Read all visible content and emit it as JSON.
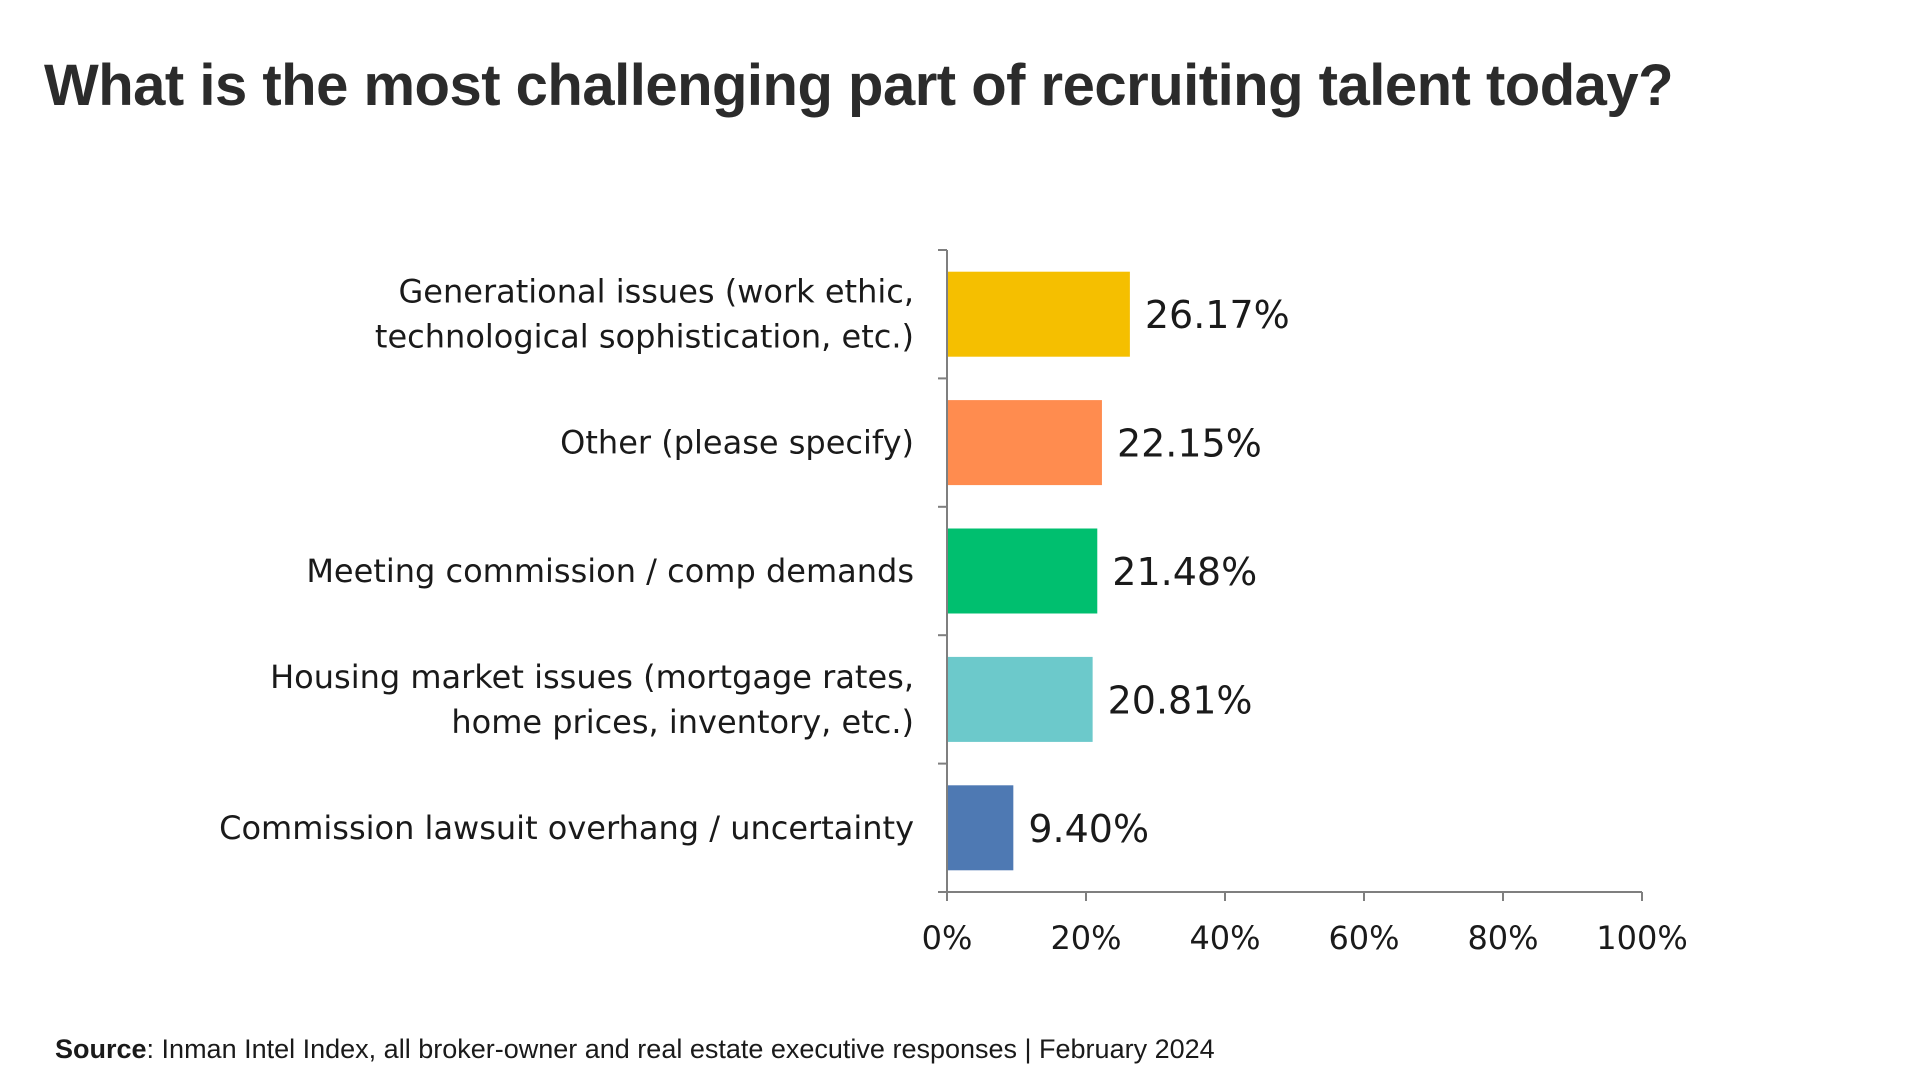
{
  "title": "What is the most challenging part of recruiting talent today?",
  "source": {
    "label": "Source",
    "text": ": Inman Intel Index, all broker-owner and real estate executive responses | February 2024"
  },
  "chart_data": {
    "type": "bar",
    "orientation": "horizontal",
    "title": "",
    "xlabel": "",
    "ylabel": "",
    "xlim": [
      0,
      100
    ],
    "grid": false,
    "legend": "none",
    "categories": [
      "Generational issues (work ethic, technological sophistication, etc.)",
      "Other (please specify)",
      "Meeting commission / comp demands",
      "Housing market issues (mortgage rates, home prices, inventory, etc.)",
      "Commission lawsuit overhang / uncertainty"
    ],
    "category_lines": [
      [
        "Generational issues (work ethic,",
        "technological sophistication, etc.)"
      ],
      [
        "Other (please specify)"
      ],
      [
        "Meeting commission / comp demands"
      ],
      [
        "Housing market issues (mortgage rates,",
        "home prices, inventory, etc.)"
      ],
      [
        "Commission lawsuit overhang / uncertainty"
      ]
    ],
    "values": [
      26.17,
      22.15,
      21.48,
      20.81,
      9.4
    ],
    "data_labels": [
      "26.17%",
      "22.15%",
      "21.48%",
      "20.81%",
      "9.40%"
    ],
    "colors": [
      "#F5BF00",
      "#FF8C4F",
      "#00BF6F",
      "#6CC9CB",
      "#4E79B3"
    ],
    "x_ticks": [
      0,
      20,
      40,
      60,
      80,
      100
    ],
    "x_tick_labels": [
      "0%",
      "20%",
      "40%",
      "60%",
      "80%",
      "100%"
    ]
  }
}
